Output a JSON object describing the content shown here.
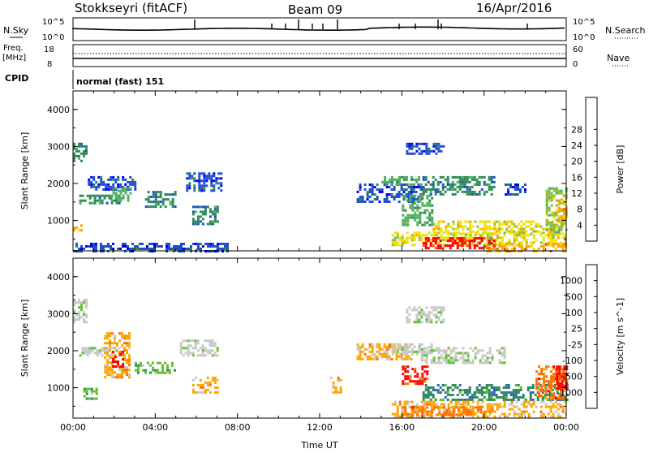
{
  "header": {
    "radar": "Stokkseyri (fitACF)",
    "beam": "Beam 09",
    "date": "16/Apr/2016"
  },
  "noise_panel": {
    "left_label": "N.Sky",
    "right_label": "N.Search",
    "tick_top": "10^5",
    "tick_bottom": "10^0"
  },
  "freq_panel": {
    "left_label_1": "Freq.",
    "left_label_2": "[MHz]",
    "right_label": "Nave",
    "left_ticks": [
      "18",
      "8"
    ],
    "right_ticks": [
      "60",
      "0"
    ]
  },
  "cpid": {
    "label": "CPID",
    "value": "normal (fast) 151"
  },
  "colors": {
    "power": [
      "#0000ff",
      "#2050c8",
      "#2e8b57",
      "#4fb060",
      "#8fbc3f",
      "#f0e000",
      "#ffa500",
      "#ff5500",
      "#ff0000"
    ],
    "velocity": [
      "#1020c0",
      "#3060c0",
      "#2e8b57",
      "#60c030",
      "#c8c8c8",
      "#c8c8c8",
      "#ffa500",
      "#ff7000",
      "#ff0000"
    ]
  },
  "chart_data": [
    {
      "type": "heatmap",
      "title": "Power",
      "xlabel": "",
      "ylabel": "Slant Range [km]",
      "colorbar_label": "Power [dB]",
      "colorbar_ticks": [
        "4",
        "8",
        "12",
        "16",
        "20",
        "24",
        "28"
      ],
      "x_ticks": [
        "00:00",
        "04:00",
        "08:00",
        "12:00",
        "16:00",
        "20:00",
        "00:00"
      ],
      "y_ticks": [
        "1000",
        "2000",
        "3000",
        "4000"
      ],
      "xlim": [
        0,
        24
      ],
      "ylim": [
        180,
        4500
      ],
      "regions": [
        {
          "x": [
            0.0,
            0.6
          ],
          "y": [
            2600,
            3100
          ],
          "level": 2
        },
        {
          "x": [
            0.3,
            2.2
          ],
          "y": [
            1450,
            1700
          ],
          "level": 2
        },
        {
          "x": [
            0.6,
            3.0
          ],
          "y": [
            1850,
            2200
          ],
          "level": 1
        },
        {
          "x": [
            1.8,
            2.8
          ],
          "y": [
            1550,
            1900
          ],
          "level": 3
        },
        {
          "x": [
            3.5,
            5.0
          ],
          "y": [
            1400,
            1800
          ],
          "level": 2
        },
        {
          "x": [
            5.5,
            7.2
          ],
          "y": [
            1800,
            2300
          ],
          "level": 1
        },
        {
          "x": [
            5.8,
            7.0
          ],
          "y": [
            900,
            1400
          ],
          "level": 2
        },
        {
          "x": [
            0.0,
            0.4
          ],
          "y": [
            750,
            900
          ],
          "level": 6
        },
        {
          "x": [
            0.0,
            7.5
          ],
          "y": [
            180,
            400
          ],
          "level": 1
        },
        {
          "x": [
            13.8,
            17.0
          ],
          "y": [
            1500,
            2000
          ],
          "level": 1
        },
        {
          "x": [
            15.0,
            17.0
          ],
          "y": [
            1950,
            2200
          ],
          "level": 3
        },
        {
          "x": [
            16.0,
            17.5
          ],
          "y": [
            900,
            1700
          ],
          "level": 3
        },
        {
          "x": [
            17.0,
            20.5
          ],
          "y": [
            1700,
            2200
          ],
          "level": 2
        },
        {
          "x": [
            16.2,
            18.0
          ],
          "y": [
            2800,
            3100
          ],
          "level": 1
        },
        {
          "x": [
            21.0,
            22.0
          ],
          "y": [
            1700,
            2000
          ],
          "level": 1
        },
        {
          "x": [
            17.5,
            24.0
          ],
          "y": [
            650,
            1000
          ],
          "level": 5
        },
        {
          "x": [
            15.5,
            24.0
          ],
          "y": [
            350,
            700
          ],
          "level": 5
        },
        {
          "x": [
            17.0,
            20.5
          ],
          "y": [
            250,
            550
          ],
          "level": 8
        },
        {
          "x": [
            20.0,
            24.0
          ],
          "y": [
            180,
            400
          ],
          "level": 6
        },
        {
          "x": [
            23.0,
            24.0
          ],
          "y": [
            700,
            1900
          ],
          "level": 4
        },
        {
          "x": [
            23.6,
            24.0
          ],
          "y": [
            1000,
            1600
          ],
          "level": 6
        }
      ]
    },
    {
      "type": "heatmap",
      "title": "Velocity",
      "xlabel": "Time UT",
      "ylabel": "Slant Range [km]",
      "colorbar_label": "Velocity [m s^-1]",
      "colorbar_ticks": [
        "1000",
        "500",
        "100",
        "25",
        "-25",
        "-100",
        "-500",
        "-1000"
      ],
      "x_ticks": [
        "00:00",
        "04:00",
        "08:00",
        "12:00",
        "16:00",
        "20:00",
        "00:00"
      ],
      "y_ticks": [
        "1000",
        "2000",
        "3000",
        "4000"
      ],
      "xlim": [
        0,
        24
      ],
      "ylim": [
        180,
        4500
      ],
      "regions": [
        {
          "x": [
            0.0,
            0.6
          ],
          "y": [
            2800,
            3400
          ],
          "level": 4
        },
        {
          "x": [
            0.3,
            2.4
          ],
          "y": [
            1850,
            2100
          ],
          "level": 4
        },
        {
          "x": [
            1.5,
            2.8
          ],
          "y": [
            1300,
            2500
          ],
          "level": 6
        },
        {
          "x": [
            1.9,
            2.4
          ],
          "y": [
            1600,
            2000
          ],
          "level": 8
        },
        {
          "x": [
            3.0,
            5.0
          ],
          "y": [
            1400,
            1700
          ],
          "level": 3
        },
        {
          "x": [
            5.2,
            7.0
          ],
          "y": [
            1850,
            2300
          ],
          "level": 4
        },
        {
          "x": [
            5.8,
            7.0
          ],
          "y": [
            900,
            1300
          ],
          "level": 6
        },
        {
          "x": [
            0.5,
            1.2
          ],
          "y": [
            700,
            1000
          ],
          "level": 3
        },
        {
          "x": [
            12.5,
            13.0
          ],
          "y": [
            900,
            1300
          ],
          "level": 6
        },
        {
          "x": [
            13.8,
            16.5
          ],
          "y": [
            1800,
            2200
          ],
          "level": 6
        },
        {
          "x": [
            15.5,
            17.5
          ],
          "y": [
            1900,
            2200
          ],
          "level": 4
        },
        {
          "x": [
            16.0,
            17.2
          ],
          "y": [
            1100,
            1600
          ],
          "level": 8
        },
        {
          "x": [
            16.8,
            21.0
          ],
          "y": [
            1700,
            2100
          ],
          "level": 4
        },
        {
          "x": [
            16.2,
            18.0
          ],
          "y": [
            2800,
            3200
          ],
          "level": 4
        },
        {
          "x": [
            17.0,
            24.0
          ],
          "y": [
            650,
            1100
          ],
          "level": 2
        },
        {
          "x": [
            15.5,
            24.0
          ],
          "y": [
            250,
            650
          ],
          "level": 6
        },
        {
          "x": [
            16.0,
            20.0
          ],
          "y": [
            300,
            500
          ],
          "level": 7
        },
        {
          "x": [
            22.5,
            24.0
          ],
          "y": [
            700,
            1600
          ],
          "level": 7
        },
        {
          "x": [
            23.5,
            24.0
          ],
          "y": [
            1000,
            1600
          ],
          "level": 8
        }
      ]
    }
  ]
}
